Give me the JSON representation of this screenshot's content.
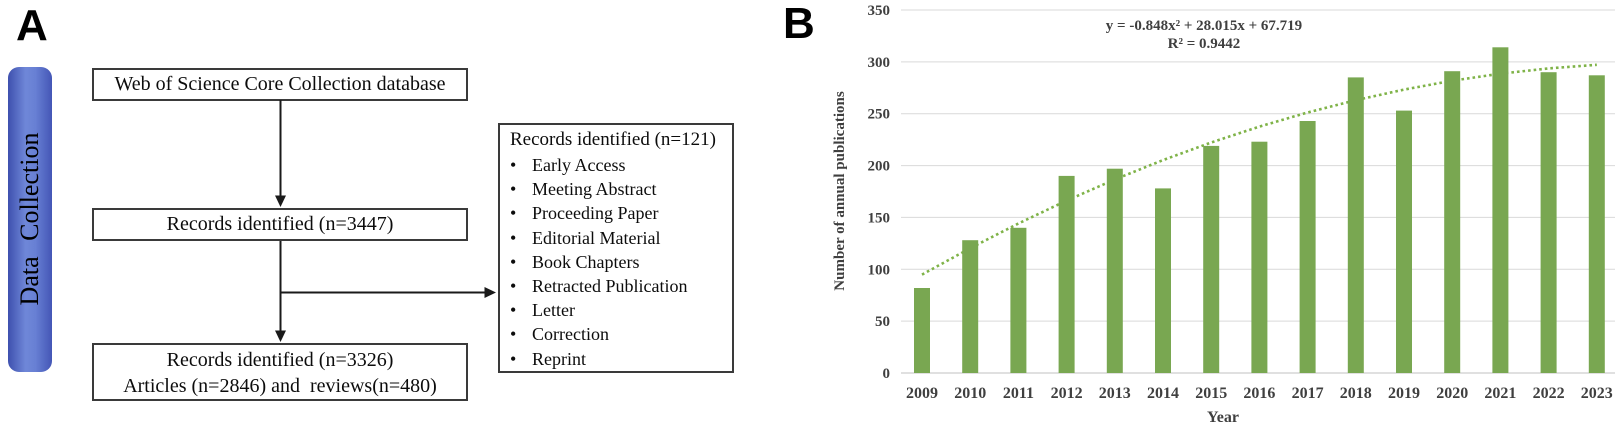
{
  "panel_a": {
    "label": "A",
    "sidebar_title": "Data Collection",
    "box_database": "Web of Science Core Collection database",
    "box_records_identified": "Records identified (n=3447)",
    "box_final_line1": "Records identified (n=3326)",
    "box_final_line2": "Articles (n=2846) and  reviews(n=480)",
    "excluded": {
      "title": "Records identified (n=121)",
      "items": [
        "Early Access",
        "Meeting Abstract",
        "Proceeding Paper",
        "Editorial Material",
        "Book Chapters",
        "Retracted Publication",
        "Letter",
        "Correction",
        "Reprint"
      ]
    }
  },
  "panel_b": {
    "label": "B"
  },
  "chart_data": {
    "type": "bar",
    "title": "",
    "categories": [
      "2009",
      "2010",
      "2011",
      "2012",
      "2013",
      "2014",
      "2015",
      "2016",
      "2017",
      "2018",
      "2019",
      "2020",
      "2021",
      "2022",
      "2023"
    ],
    "values": [
      82,
      128,
      140,
      190,
      197,
      178,
      219,
      223,
      243,
      285,
      253,
      291,
      314,
      290,
      287
    ],
    "xlabel": "Year",
    "ylabel": "Number of annual publications",
    "ylim": [
      0,
      350
    ],
    "ytick_step": 50,
    "grid": true,
    "legend": "none",
    "trendline": {
      "type": "polynomial",
      "order": 2,
      "coefficients": {
        "a": -0.848,
        "b": 28.015,
        "c": 67.719
      },
      "equation": "y = -0.848x² + 28.015x + 67.719",
      "r_squared_label": "R² = 0.9442",
      "r_squared": 0.9442
    },
    "colors": {
      "bar": "#79A751",
      "trend": "#7FB348",
      "grid": "#D9D9D9",
      "axis": "#C2C2C2",
      "text": "#3F3F3F"
    }
  }
}
